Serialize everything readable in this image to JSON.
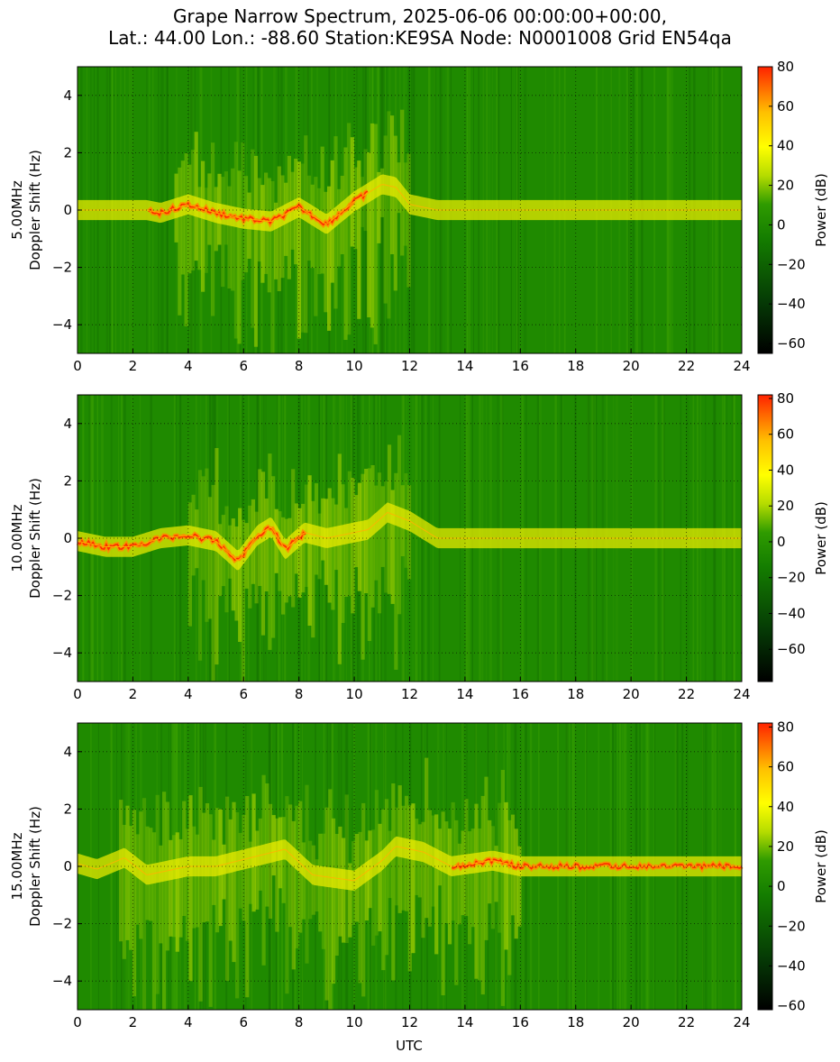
{
  "title_lines": [
    "Grape Narrow Spectrum, 2025-06-06 00:00:00+00:00,",
    "Lat.: 44.00 Lon.: -88.60 Station:KE9SA Node: N0001008 Grid EN54qa"
  ],
  "xlabel": "UTC",
  "colors": {
    "low": "#000000",
    "mid_low": "#0a6b0a",
    "mid": "#1f8f00",
    "yellow": "#ffff00",
    "high": "#ff2200"
  },
  "chart_data": [
    {
      "type": "heatmap",
      "panel": "5.00MHz",
      "ylabel_line1": "5.00MHz",
      "ylabel_line2": "Doppler Shift (Hz)",
      "xlim": [
        0,
        24
      ],
      "ylim": [
        -5,
        5
      ],
      "xticks": [
        "0",
        "2",
        "4",
        "6",
        "8",
        "10",
        "12",
        "14",
        "16",
        "18",
        "20",
        "22",
        "24"
      ],
      "yticks": [
        "4",
        "2",
        "0",
        "−2",
        "−4"
      ],
      "ytick_values": [
        4,
        2,
        0,
        -2,
        -4
      ],
      "colorbar_label": "Power (dB)",
      "colorbar_range": [
        -65,
        80
      ],
      "colorbar_ticks": [
        "80",
        "60",
        "40",
        "20",
        "0",
        "−20",
        "−40",
        "−60"
      ],
      "colorbar_tick_values": [
        80,
        60,
        40,
        20,
        0,
        -20,
        -40,
        -60
      ],
      "grid": true,
      "trace": [
        [
          0.0,
          0.0
        ],
        [
          2.5,
          0.0
        ],
        [
          3.0,
          -0.1
        ],
        [
          4.0,
          0.2
        ],
        [
          5.0,
          -0.1
        ],
        [
          6.0,
          -0.3
        ],
        [
          7.0,
          -0.4
        ],
        [
          8.0,
          0.1
        ],
        [
          9.0,
          -0.5
        ],
        [
          10.0,
          0.3
        ],
        [
          11.0,
          0.9
        ],
        [
          11.5,
          0.8
        ],
        [
          12.0,
          0.2
        ],
        [
          13.0,
          0.0
        ],
        [
          24.0,
          0.0
        ]
      ],
      "intense_range": [
        2.5,
        10.5
      ],
      "spread_range": [
        3.5,
        12.0
      ]
    },
    {
      "type": "heatmap",
      "panel": "10.00MHz",
      "ylabel_line1": "10.00MHz",
      "ylabel_line2": "Doppler Shift (Hz)",
      "xlim": [
        0,
        24
      ],
      "ylim": [
        -5,
        5
      ],
      "xticks": [
        "0",
        "2",
        "4",
        "6",
        "8",
        "10",
        "12",
        "14",
        "16",
        "18",
        "20",
        "22",
        "24"
      ],
      "yticks": [
        "4",
        "2",
        "0",
        "−2",
        "−4"
      ],
      "ytick_values": [
        4,
        2,
        0,
        -2,
        -4
      ],
      "colorbar_label": "Power (dB)",
      "colorbar_range": [
        -78,
        82
      ],
      "colorbar_ticks": [
        "80",
        "60",
        "40",
        "20",
        "0",
        "−20",
        "−40",
        "−60"
      ],
      "colorbar_tick_values": [
        80,
        60,
        40,
        20,
        0,
        -20,
        -40,
        -60
      ],
      "grid": true,
      "trace": [
        [
          0.0,
          -0.1
        ],
        [
          1.0,
          -0.3
        ],
        [
          2.0,
          -0.3
        ],
        [
          3.0,
          0.0
        ],
        [
          4.0,
          0.1
        ],
        [
          5.0,
          -0.1
        ],
        [
          5.8,
          -0.8
        ],
        [
          6.5,
          0.1
        ],
        [
          7.0,
          0.4
        ],
        [
          7.5,
          -0.4
        ],
        [
          8.2,
          0.2
        ],
        [
          9.0,
          0.0
        ],
        [
          10.5,
          0.3
        ],
        [
          11.2,
          0.9
        ],
        [
          12.0,
          0.6
        ],
        [
          13.0,
          0.0
        ],
        [
          24.0,
          0.0
        ]
      ],
      "intense_range": [
        0.0,
        8.3
      ],
      "spread_range": [
        4.0,
        12.0
      ]
    },
    {
      "type": "heatmap",
      "panel": "15.00MHz",
      "ylabel_line1": "15.00MHz",
      "ylabel_line2": "Doppler Shift (Hz)",
      "xlim": [
        0,
        24
      ],
      "ylim": [
        -5,
        5
      ],
      "xticks": [
        "0",
        "2",
        "4",
        "6",
        "8",
        "10",
        "12",
        "14",
        "16",
        "18",
        "20",
        "22",
        "24"
      ],
      "yticks": [
        "4",
        "2",
        "0",
        "−2",
        "−4"
      ],
      "ytick_values": [
        4,
        2,
        0,
        -2,
        -4
      ],
      "colorbar_label": "Power (dB)",
      "colorbar_range": [
        -62,
        82
      ],
      "colorbar_ticks": [
        "80",
        "60",
        "40",
        "20",
        "0",
        "−20",
        "−40",
        "−60"
      ],
      "colorbar_tick_values": [
        80,
        60,
        40,
        20,
        0,
        -20,
        -40,
        -60
      ],
      "grid": true,
      "trace": [
        [
          0.0,
          0.1
        ],
        [
          0.7,
          -0.1
        ],
        [
          1.7,
          0.3
        ],
        [
          2.5,
          -0.3
        ],
        [
          3.0,
          -0.2
        ],
        [
          4.0,
          0.0
        ],
        [
          5.0,
          0.0
        ],
        [
          7.5,
          0.6
        ],
        [
          8.5,
          -0.3
        ],
        [
          10.0,
          -0.5
        ],
        [
          11.0,
          0.2
        ],
        [
          11.5,
          0.7
        ],
        [
          12.5,
          0.5
        ],
        [
          13.5,
          0.0
        ],
        [
          15.0,
          0.2
        ],
        [
          16.0,
          0.0
        ],
        [
          24.0,
          0.0
        ]
      ],
      "intense_range": [
        13.5,
        24.0
      ],
      "spread_range": [
        1.5,
        16.0
      ]
    }
  ]
}
